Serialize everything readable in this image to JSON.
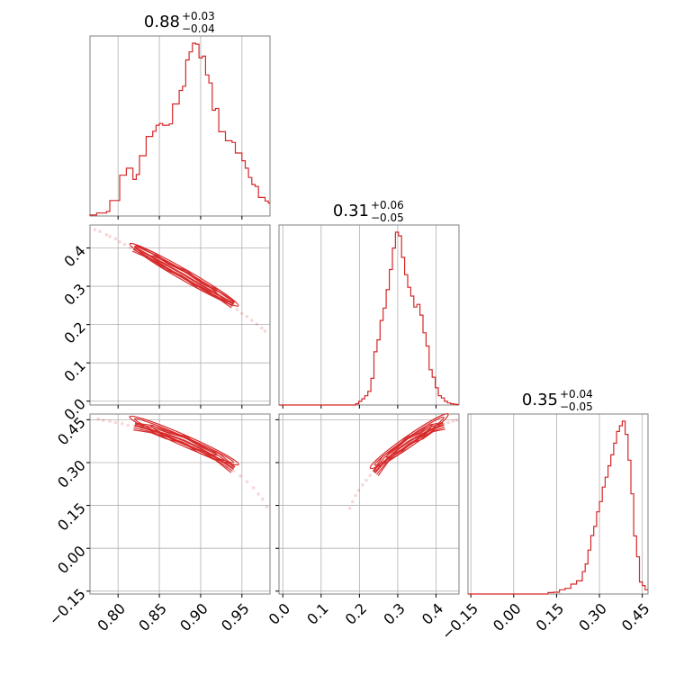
{
  "colors": {
    "accent": "#d62728",
    "grid": "#b0b0b0",
    "frame": "#808080"
  },
  "chart_data": {
    "type": "corner",
    "parameters": [
      "p0",
      "p1",
      "p2"
    ],
    "grid": true,
    "titles": [
      {
        "center": "0.88",
        "plus": "+0.03",
        "minus": "−0.04"
      },
      {
        "center": "0.31",
        "plus": "+0.06",
        "minus": "−0.05"
      },
      {
        "center": "0.35",
        "plus": "+0.04",
        "minus": "−0.05"
      }
    ],
    "axes": {
      "p0": {
        "range": [
          0.766,
          0.984
        ],
        "ticks": [
          0.8,
          0.85,
          0.9,
          0.95
        ],
        "tick_labels": [
          "0.80",
          "0.85",
          "0.90",
          "0.95"
        ]
      },
      "p1": {
        "range": [
          -0.01,
          0.46
        ],
        "ticks": [
          0.0,
          0.1,
          0.2,
          0.3,
          0.4
        ],
        "tick_labels": [
          "0.0",
          "0.1",
          "0.2",
          "0.3",
          "0.4"
        ]
      },
      "p2": {
        "range": [
          -0.16,
          0.47
        ],
        "ticks": [
          -0.15,
          0.0,
          0.15,
          0.3,
          0.45
        ],
        "tick_labels": [
          "−0.15",
          "0.00",
          "0.15",
          "0.30",
          "0.45"
        ]
      }
    },
    "histograms": [
      {
        "param": "p0",
        "bins": [
          [
            0.766,
            0.004
          ],
          [
            0.77,
            0.004
          ],
          [
            0.774,
            0.012
          ],
          [
            0.778,
            0.012
          ],
          [
            0.782,
            0.012
          ],
          [
            0.786,
            0.018
          ],
          [
            0.79,
            0.062
          ],
          [
            0.794,
            0.062
          ],
          [
            0.798,
            0.062
          ],
          [
            0.802,
            0.163
          ],
          [
            0.806,
            0.163
          ],
          [
            0.81,
            0.191
          ],
          [
            0.814,
            0.191
          ],
          [
            0.818,
            0.146
          ],
          [
            0.822,
            0.166
          ],
          [
            0.826,
            0.241
          ],
          [
            0.83,
            0.241
          ],
          [
            0.834,
            0.318
          ],
          [
            0.838,
            0.318
          ],
          [
            0.842,
            0.339
          ],
          [
            0.846,
            0.363
          ],
          [
            0.85,
            0.37
          ],
          [
            0.854,
            0.363
          ],
          [
            0.858,
            0.363
          ],
          [
            0.862,
            0.368
          ],
          [
            0.866,
            0.448
          ],
          [
            0.87,
            0.448
          ],
          [
            0.874,
            0.502
          ],
          [
            0.878,
            0.519
          ],
          [
            0.882,
            0.624
          ],
          [
            0.886,
            0.656
          ],
          [
            0.89,
            0.691
          ],
          [
            0.894,
            0.687
          ],
          [
            0.898,
            0.632
          ],
          [
            0.902,
            0.639
          ],
          [
            0.906,
            0.564
          ],
          [
            0.91,
            0.532
          ],
          [
            0.914,
            0.423
          ],
          [
            0.918,
            0.43
          ],
          [
            0.922,
            0.337
          ],
          [
            0.926,
            0.337
          ],
          [
            0.93,
            0.301
          ],
          [
            0.934,
            0.301
          ],
          [
            0.938,
            0.294
          ],
          [
            0.942,
            0.252
          ],
          [
            0.946,
            0.252
          ],
          [
            0.95,
            0.221
          ],
          [
            0.954,
            0.191
          ],
          [
            0.958,
            0.154
          ],
          [
            0.962,
            0.126
          ],
          [
            0.966,
            0.118
          ],
          [
            0.97,
            0.074
          ],
          [
            0.974,
            0.074
          ],
          [
            0.978,
            0.06
          ],
          [
            0.982,
            0.052
          ]
        ]
      },
      {
        "param": "p1",
        "bins": [
          [
            -0.01,
            0.0
          ],
          [
            0.19,
            0.006
          ],
          [
            0.198,
            0.018
          ],
          [
            0.206,
            0.03
          ],
          [
            0.214,
            0.045
          ],
          [
            0.222,
            0.066
          ],
          [
            0.23,
            0.129
          ],
          [
            0.238,
            0.258
          ],
          [
            0.246,
            0.316
          ],
          [
            0.254,
            0.41
          ],
          [
            0.262,
            0.47
          ],
          [
            0.27,
            0.559
          ],
          [
            0.278,
            0.657
          ],
          [
            0.286,
            0.761
          ],
          [
            0.294,
            0.838
          ],
          [
            0.302,
            0.82
          ],
          [
            0.31,
            0.716
          ],
          [
            0.318,
            0.632
          ],
          [
            0.326,
            0.571
          ],
          [
            0.334,
            0.528
          ],
          [
            0.342,
            0.475
          ],
          [
            0.35,
            0.488
          ],
          [
            0.358,
            0.436
          ],
          [
            0.366,
            0.35
          ],
          [
            0.374,
            0.286
          ],
          [
            0.382,
            0.171
          ],
          [
            0.39,
            0.135
          ],
          [
            0.398,
            0.084
          ],
          [
            0.406,
            0.045
          ],
          [
            0.414,
            0.034
          ],
          [
            0.422,
            0.018
          ],
          [
            0.43,
            0.01
          ],
          [
            0.438,
            0.006
          ],
          [
            0.446,
            0.004
          ],
          [
            0.454,
            0.002
          ]
        ]
      },
      {
        "param": "p2",
        "bins": [
          [
            -0.16,
            0.0
          ],
          [
            0.12,
            0.004
          ],
          [
            0.14,
            0.005
          ],
          [
            0.16,
            0.012
          ],
          [
            0.18,
            0.016
          ],
          [
            0.2,
            0.028
          ],
          [
            0.22,
            0.037
          ],
          [
            0.24,
            0.063
          ],
          [
            0.25,
            0.085
          ],
          [
            0.26,
            0.124
          ],
          [
            0.27,
            0.165
          ],
          [
            0.28,
            0.191
          ],
          [
            0.29,
            0.232
          ],
          [
            0.3,
            0.261
          ],
          [
            0.31,
            0.302
          ],
          [
            0.32,
            0.33
          ],
          [
            0.33,
            0.362
          ],
          [
            0.34,
            0.393
          ],
          [
            0.35,
            0.426
          ],
          [
            0.36,
            0.459
          ],
          [
            0.37,
            0.475
          ],
          [
            0.38,
            0.488
          ],
          [
            0.39,
            0.451
          ],
          [
            0.4,
            0.378
          ],
          [
            0.41,
            0.283
          ],
          [
            0.42,
            0.164
          ],
          [
            0.43,
            0.105
          ],
          [
            0.44,
            0.034
          ],
          [
            0.45,
            0.024
          ],
          [
            0.46,
            0.012
          ]
        ]
      }
    ],
    "joint": [
      {
        "x": "p0",
        "y": "p1",
        "points": [
          [
            0.772,
            0.448
          ],
          [
            0.778,
            0.443
          ],
          [
            0.786,
            0.435
          ],
          [
            0.79,
            0.43
          ],
          [
            0.797,
            0.424
          ],
          [
            0.802,
            0.416
          ],
          [
            0.808,
            0.409
          ],
          [
            0.815,
            0.401
          ],
          [
            0.822,
            0.394
          ],
          [
            0.828,
            0.386
          ],
          [
            0.835,
            0.378
          ],
          [
            0.842,
            0.369
          ],
          [
            0.85,
            0.362
          ],
          [
            0.856,
            0.352
          ],
          [
            0.864,
            0.344
          ],
          [
            0.87,
            0.336
          ],
          [
            0.876,
            0.328
          ],
          [
            0.884,
            0.32
          ],
          [
            0.89,
            0.31
          ],
          [
            0.896,
            0.303
          ],
          [
            0.902,
            0.295
          ],
          [
            0.91,
            0.286
          ],
          [
            0.918,
            0.276
          ],
          [
            0.925,
            0.266
          ],
          [
            0.932,
            0.257
          ],
          [
            0.938,
            0.249
          ],
          [
            0.944,
            0.239
          ],
          [
            0.95,
            0.229
          ],
          [
            0.956,
            0.221
          ],
          [
            0.962,
            0.211
          ],
          [
            0.968,
            0.201
          ],
          [
            0.974,
            0.191
          ],
          [
            0.978,
            0.183
          ]
        ],
        "contour_ridge": [
          [
            0.82,
            0.402
          ],
          [
            0.84,
            0.378
          ],
          [
            0.86,
            0.354
          ],
          [
            0.88,
            0.33
          ],
          [
            0.9,
            0.304
          ],
          [
            0.92,
            0.279
          ],
          [
            0.94,
            0.254
          ]
        ]
      },
      {
        "x": "p0",
        "y": "p2",
        "points": [
          [
            0.776,
            0.452
          ],
          [
            0.782,
            0.448
          ],
          [
            0.79,
            0.444
          ],
          [
            0.797,
            0.44
          ],
          [
            0.805,
            0.436
          ],
          [
            0.812,
            0.43
          ],
          [
            0.82,
            0.425
          ],
          [
            0.828,
            0.419
          ],
          [
            0.836,
            0.413
          ],
          [
            0.845,
            0.406
          ],
          [
            0.852,
            0.4
          ],
          [
            0.86,
            0.392
          ],
          [
            0.868,
            0.384
          ],
          [
            0.876,
            0.376
          ],
          [
            0.884,
            0.366
          ],
          [
            0.892,
            0.355
          ],
          [
            0.9,
            0.344
          ],
          [
            0.908,
            0.333
          ],
          [
            0.916,
            0.318
          ],
          [
            0.924,
            0.303
          ],
          [
            0.932,
            0.287
          ],
          [
            0.94,
            0.271
          ],
          [
            0.948,
            0.253
          ],
          [
            0.956,
            0.233
          ],
          [
            0.964,
            0.212
          ],
          [
            0.97,
            0.19
          ],
          [
            0.975,
            0.172
          ],
          [
            0.98,
            0.145
          ]
        ],
        "contour_ridge": [
          [
            0.82,
            0.43
          ],
          [
            0.84,
            0.414
          ],
          [
            0.86,
            0.398
          ],
          [
            0.88,
            0.377
          ],
          [
            0.9,
            0.349
          ],
          [
            0.92,
            0.316
          ],
          [
            0.94,
            0.278
          ]
        ]
      },
      {
        "x": "p1",
        "y": "p2",
        "points": [
          [
            0.175,
            0.14
          ],
          [
            0.182,
            0.163
          ],
          [
            0.19,
            0.185
          ],
          [
            0.198,
            0.203
          ],
          [
            0.208,
            0.222
          ],
          [
            0.218,
            0.238
          ],
          [
            0.228,
            0.255
          ],
          [
            0.24,
            0.272
          ],
          [
            0.252,
            0.29
          ],
          [
            0.264,
            0.305
          ],
          [
            0.276,
            0.319
          ],
          [
            0.288,
            0.333
          ],
          [
            0.3,
            0.346
          ],
          [
            0.312,
            0.359
          ],
          [
            0.324,
            0.37
          ],
          [
            0.336,
            0.38
          ],
          [
            0.348,
            0.389
          ],
          [
            0.36,
            0.398
          ],
          [
            0.372,
            0.406
          ],
          [
            0.384,
            0.415
          ],
          [
            0.396,
            0.421
          ],
          [
            0.408,
            0.428
          ],
          [
            0.42,
            0.434
          ],
          [
            0.432,
            0.44
          ],
          [
            0.444,
            0.445
          ],
          [
            0.454,
            0.448
          ]
        ],
        "contour_ridge": [
          [
            0.24,
            0.264
          ],
          [
            0.27,
            0.31
          ],
          [
            0.3,
            0.346
          ],
          [
            0.33,
            0.375
          ],
          [
            0.36,
            0.397
          ],
          [
            0.39,
            0.417
          ],
          [
            0.42,
            0.432
          ]
        ]
      }
    ]
  }
}
